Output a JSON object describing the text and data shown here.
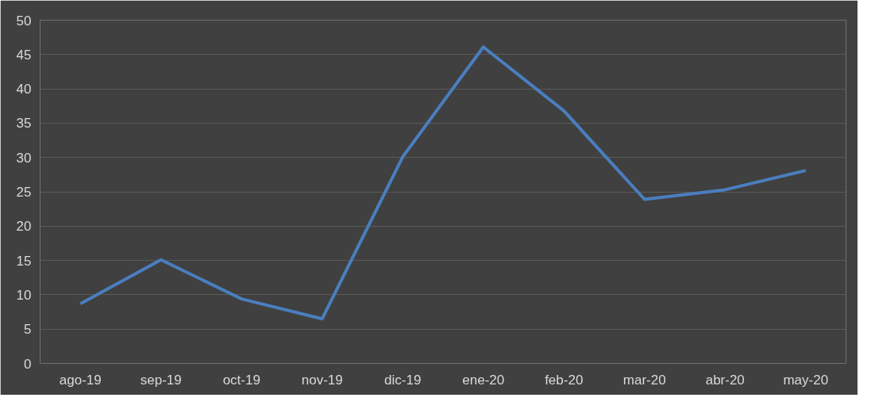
{
  "chart_data": {
    "type": "line",
    "categories": [
      "ago-19",
      "sep-19",
      "oct-19",
      "nov-19",
      "dic-19",
      "ene-20",
      "feb-20",
      "mar-20",
      "abr-20",
      "may-20"
    ],
    "series": [
      {
        "color": "#4a7ebf",
        "values": [
          8.7,
          15.1,
          9.4,
          6.5,
          30.1,
          46.1,
          36.8,
          23.9,
          25.3,
          28.1
        ]
      }
    ],
    "ylim": [
      0,
      50
    ],
    "yticks": [
      0,
      5,
      10,
      15,
      20,
      25,
      30,
      35,
      40,
      45,
      50
    ],
    "grid": "y",
    "marker": "none",
    "line_style": "solid"
  }
}
